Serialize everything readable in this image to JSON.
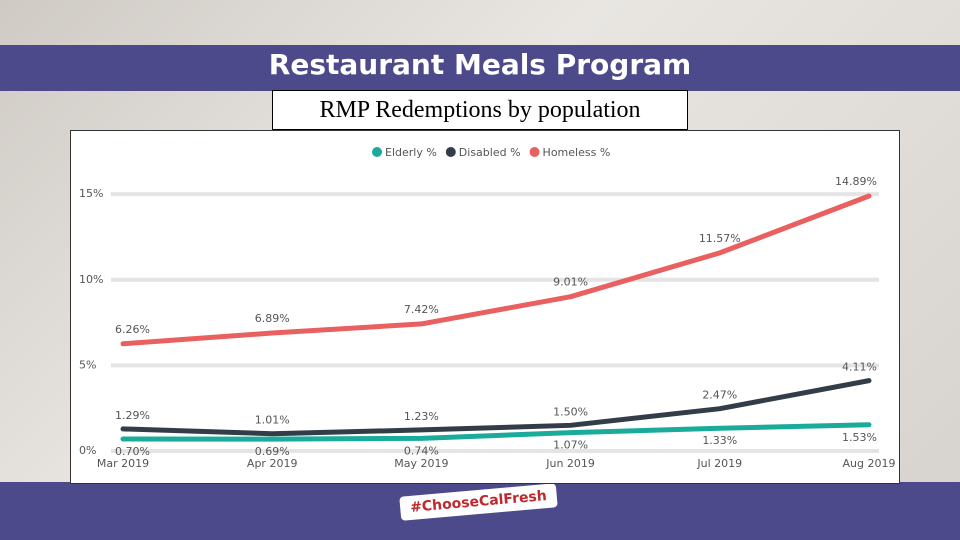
{
  "header": {
    "title": "Restaurant Meals Program"
  },
  "footer": {
    "logo_text": "#ChooseCalFresh"
  },
  "chart_data": {
    "type": "line",
    "title": "RMP Redemptions by population",
    "categories": [
      "Mar 2019",
      "Apr 2019",
      "May 2019",
      "Jun 2019",
      "Jul 2019",
      "Aug 2019"
    ],
    "series": [
      {
        "name": "Elderly %",
        "color": "#1aab9b",
        "values": [
          0.7,
          0.69,
          0.74,
          1.07,
          1.33,
          1.53
        ],
        "value_labels": [
          "0.70%",
          "0.69%",
          "0.74%",
          "1.07%",
          "1.33%",
          "1.53%"
        ]
      },
      {
        "name": "Disabled %",
        "color": "#333d47",
        "values": [
          1.29,
          1.01,
          1.23,
          1.5,
          2.47,
          4.11
        ],
        "value_labels": [
          "1.29%",
          "1.01%",
          "1.23%",
          "1.50%",
          "2.47%",
          "4.11%"
        ]
      },
      {
        "name": "Homeless %",
        "color": "#e8605f",
        "values": [
          6.26,
          6.89,
          7.42,
          9.01,
          11.57,
          14.89
        ],
        "value_labels": [
          "6.26%",
          "6.89%",
          "7.42%",
          "9.01%",
          "11.57%",
          "14.89%"
        ]
      }
    ],
    "ylim": [
      0,
      16
    ],
    "yticks": [
      {
        "value": 0,
        "label": "0%"
      },
      {
        "value": 5,
        "label": "5%"
      },
      {
        "value": 10,
        "label": "10%"
      },
      {
        "value": 15,
        "label": "15%"
      }
    ],
    "grid": true,
    "legend": "top"
  }
}
